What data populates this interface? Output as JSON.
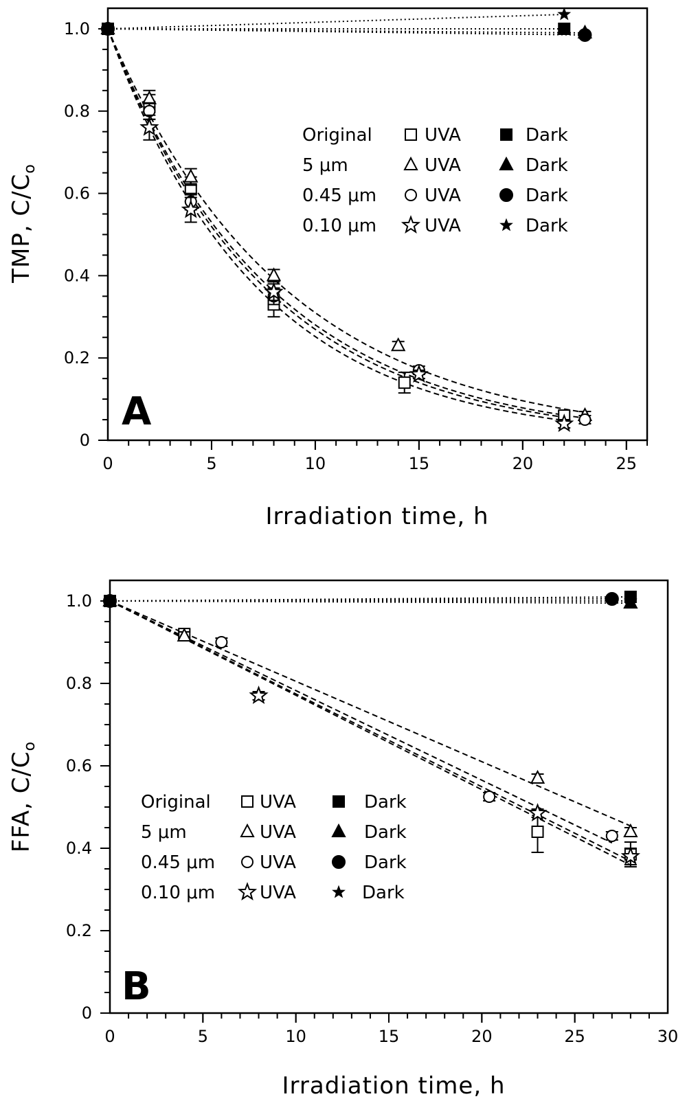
{
  "chart_data": [
    {
      "panel": "A",
      "type": "scatter",
      "xlabel": "Irradiation time, h",
      "ylabel": "TMP, C/C",
      "ylabel_sub": "o",
      "xlim": [
        0,
        26
      ],
      "ylim": [
        0,
        1.05
      ],
      "xticks": [
        "0",
        "5",
        "10",
        "15",
        "20",
        "25"
      ],
      "yticks": [
        "0",
        "0.2",
        "0.4",
        "0.6",
        "0.8",
        "1.0"
      ],
      "legend": {
        "placement": "upper-right",
        "rows": [
          {
            "name": "Original",
            "uva": "UVA",
            "dark": "Dark"
          },
          {
            "name": "5  μm",
            "uva": "UVA",
            "dark": "Dark"
          },
          {
            "name": "0.45  μm",
            "uva": "UVA",
            "dark": "Dark"
          },
          {
            "name": "0.10  μm",
            "uva": "UVA",
            "dark": "Dark"
          }
        ]
      },
      "series": [
        {
          "filter": "Original",
          "light": "UVA",
          "marker": "square-open",
          "fit": "exponential",
          "points": [
            [
              0,
              1.0
            ],
            [
              2,
              0.81
            ],
            [
              4,
              0.61
            ],
            [
              8,
              0.33
            ],
            [
              14.3,
              0.14
            ],
            [
              22,
              0.06
            ]
          ],
          "err": [
            0,
            0.03,
            0.03,
            0.03,
            0.025,
            0.01
          ]
        },
        {
          "filter": "5 μm",
          "light": "UVA",
          "marker": "triangle-open",
          "fit": "exponential",
          "points": [
            [
              0,
              1.0
            ],
            [
              2,
              0.83
            ],
            [
              4,
              0.64
            ],
            [
              8,
              0.4
            ],
            [
              14,
              0.23
            ],
            [
              23,
              0.06
            ]
          ],
          "err": [
            0,
            0.02,
            0.02,
            0.015,
            0.01,
            0.01
          ]
        },
        {
          "filter": "0.45 μm",
          "light": "UVA",
          "marker": "circle-open",
          "fit": "exponential",
          "points": [
            [
              0,
              1.0
            ],
            [
              2,
              0.8
            ],
            [
              4,
              0.58
            ],
            [
              8,
              0.35
            ],
            [
              15,
              0.17
            ],
            [
              23,
              0.05
            ]
          ],
          "err": [
            0,
            0.02,
            0.02,
            0.02,
            0.01,
            0.01
          ]
        },
        {
          "filter": "0.10 μm",
          "light": "UVA",
          "marker": "star-open",
          "fit": "exponential",
          "points": [
            [
              0,
              1.0
            ],
            [
              2,
              0.76
            ],
            [
              4,
              0.56
            ],
            [
              8,
              0.36
            ],
            [
              15,
              0.16
            ],
            [
              22,
              0.04
            ]
          ],
          "err": [
            0,
            0.03,
            0.03,
            0.02,
            0.01,
            0.01
          ]
        },
        {
          "filter": "Original",
          "light": "Dark",
          "marker": "square-filled",
          "fit": "dotted",
          "points": [
            [
              0,
              1.0
            ],
            [
              22,
              1.0
            ]
          ]
        },
        {
          "filter": "5 μm",
          "light": "Dark",
          "marker": "triangle-filled",
          "fit": "dotted",
          "points": [
            [
              0,
              1.0
            ],
            [
              23,
              0.99
            ]
          ]
        },
        {
          "filter": "0.45 μm",
          "light": "Dark",
          "marker": "circle-filled",
          "fit": "dotted",
          "points": [
            [
              0,
              1.0
            ],
            [
              23,
              0.985
            ]
          ]
        },
        {
          "filter": "0.10 μm",
          "light": "Dark",
          "marker": "star-filled",
          "fit": "dotted",
          "points": [
            [
              0,
              1.0
            ],
            [
              22,
              1.035
            ]
          ]
        }
      ]
    },
    {
      "panel": "B",
      "type": "scatter",
      "xlabel": "Irradiation time, h",
      "ylabel": "FFA, C/C",
      "ylabel_sub": "o",
      "xlim": [
        0,
        30
      ],
      "ylim": [
        0,
        1.05
      ],
      "xticks": [
        "0",
        "5",
        "10",
        "15",
        "20",
        "25",
        "30"
      ],
      "yticks": [
        "0",
        "0.2",
        "0.4",
        "0.6",
        "0.8",
        "1.0"
      ],
      "legend": {
        "placement": "lower-left",
        "rows": [
          {
            "name": "Original",
            "uva": "UVA",
            "dark": "Dark"
          },
          {
            "name": "5  μm",
            "uva": "UVA",
            "dark": "Dark"
          },
          {
            "name": "0.45  μm",
            "uva": "UVA",
            "dark": "Dark"
          },
          {
            "name": "0.10  μm",
            "uva": "UVA",
            "dark": "Dark"
          }
        ]
      },
      "series": [
        {
          "filter": "Original",
          "light": "UVA",
          "marker": "square-open",
          "fit": "linear",
          "points": [
            [
              0,
              1.0
            ],
            [
              4,
              0.92
            ],
            [
              23,
              0.44
            ],
            [
              28,
              0.385
            ]
          ],
          "err": [
            0,
            0.01,
            0.05,
            0.03
          ]
        },
        {
          "filter": "5 μm",
          "light": "UVA",
          "marker": "triangle-open",
          "fit": "linear",
          "points": [
            [
              0,
              1.0
            ],
            [
              4,
              0.915
            ],
            [
              23,
              0.57
            ],
            [
              28,
              0.44
            ]
          ],
          "err": [
            0,
            0.01,
            0.01,
            0.01
          ]
        },
        {
          "filter": "0.45 μm",
          "light": "UVA",
          "marker": "circle-open",
          "fit": "linear",
          "points": [
            [
              0,
              1.0
            ],
            [
              6,
              0.9
            ],
            [
              20.4,
              0.525
            ],
            [
              27,
              0.43
            ]
          ],
          "err": [
            0,
            0.01,
            0.01,
            0.01
          ]
        },
        {
          "filter": "0.10 μm",
          "light": "UVA",
          "marker": "star-open",
          "fit": "linear",
          "points": [
            [
              0,
              1.0
            ],
            [
              8,
              0.77
            ],
            [
              23,
              0.485
            ],
            [
              28,
              0.38
            ]
          ],
          "err": [
            0,
            0.01,
            0.01,
            0.02
          ]
        },
        {
          "filter": "Original",
          "light": "Dark",
          "marker": "square-filled",
          "fit": "dotted",
          "points": [
            [
              0,
              1.0
            ],
            [
              28,
              1.01
            ]
          ]
        },
        {
          "filter": "5 μm",
          "light": "Dark",
          "marker": "triangle-filled",
          "fit": "dotted",
          "points": [
            [
              0,
              1.0
            ],
            [
              28,
              0.995
            ]
          ]
        },
        {
          "filter": "0.45 μm",
          "light": "Dark",
          "marker": "circle-filled",
          "fit": "dotted",
          "points": [
            [
              0,
              1.0
            ],
            [
              27,
              1.005
            ]
          ]
        },
        {
          "filter": "0.10 μm",
          "light": "Dark",
          "marker": "star-filled",
          "fit": "dotted",
          "points": [
            [
              0,
              1.0
            ],
            [
              28,
              1.0
            ]
          ]
        }
      ]
    }
  ]
}
